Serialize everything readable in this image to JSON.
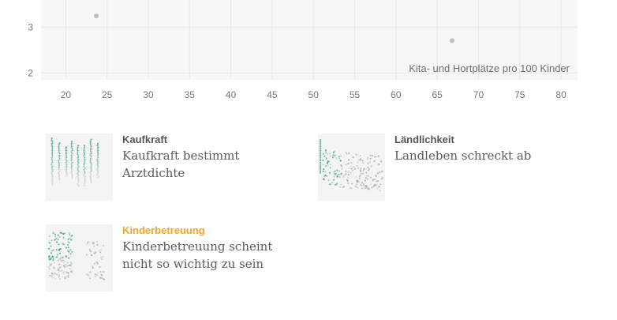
{
  "chart_data": {
    "type": "scatter",
    "xlabel": "Kita- und Hortplätze pro 100 Kinder",
    "ylabel": "",
    "xlim": [
      17,
      82
    ],
    "ylim": [
      1.85,
      3.6
    ],
    "x_ticks": [
      20,
      25,
      30,
      35,
      40,
      45,
      50,
      55,
      60,
      65,
      70,
      75,
      80
    ],
    "y_ticks": [
      2,
      3
    ],
    "grid": true,
    "series": [
      {
        "points": [
          {
            "x": 23.7,
            "y": 3.25
          },
          {
            "x": 66.8,
            "y": 2.71
          }
        ]
      }
    ],
    "colors": {
      "point": "#bdbdbd",
      "grid": "#e8e8e8",
      "plot_bg": "#f7f7f7"
    }
  },
  "cards": [
    {
      "id": "kaufkraft",
      "title": "Kaufkraft",
      "subtitle": "Kaufkraft bestimmt Arztdichte",
      "active": false,
      "thumb": "kaufkraft"
    },
    {
      "id": "laendlichkeit",
      "title": "Ländlichkeit",
      "subtitle": "Landleben schreckt ab",
      "active": false,
      "thumb": "laendlichkeit"
    },
    {
      "id": "kinderbetreuung",
      "title": "Kinderbetreuung",
      "subtitle": "Kinderbetreuung scheint nicht so wichtig zu sein",
      "active": true,
      "thumb": "kinderbetreuung"
    }
  ],
  "theme": {
    "accent": "#f5a623",
    "thumb_green": "#2f9a7a",
    "thumb_grey": "#9a9a9a"
  }
}
